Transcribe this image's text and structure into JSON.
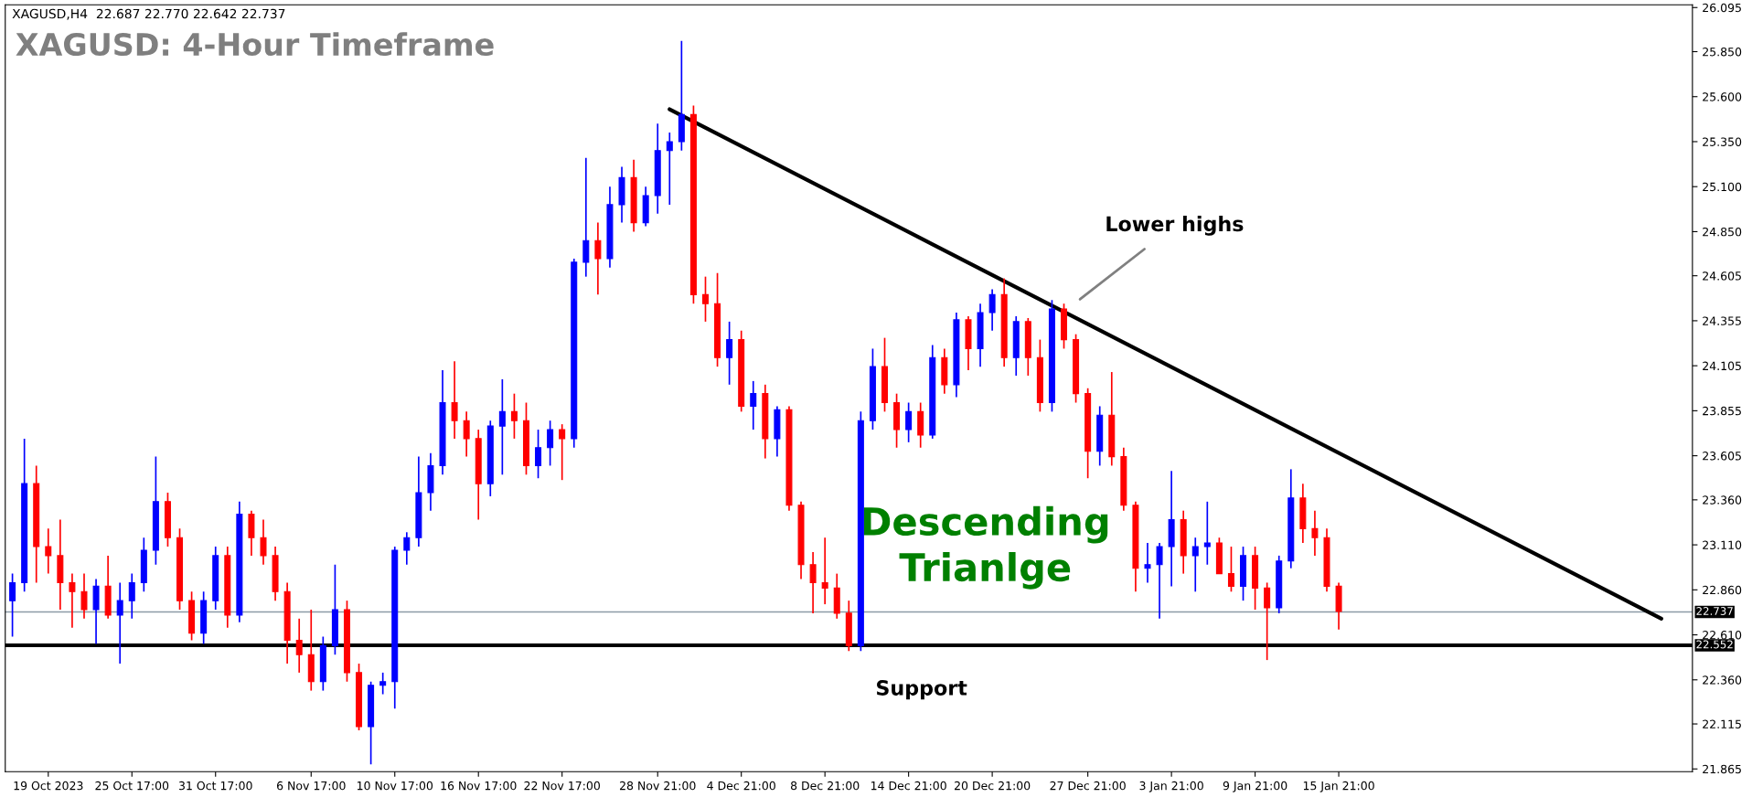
{
  "chart_data": {
    "type": "candlestick",
    "title": "XAGUSD: 4-Hour Timeframe",
    "annotations": [
      "XAGUSD,H4  22.687 22.770 22.642 22.737",
      "Lower highs",
      "Descending\nTrianlge",
      "Support"
    ],
    "categories": [
      null,
      null,
      null,
      "19 Oct 2023",
      null,
      null,
      null,
      null,
      null,
      null,
      "25 Oct 17:00",
      null,
      null,
      null,
      null,
      null,
      null,
      "31 Oct 17:00",
      null,
      null,
      null,
      null,
      null,
      null,
      null,
      "6 Nov 17:00",
      null,
      null,
      null,
      null,
      null,
      null,
      "10 Nov 17:00",
      null,
      null,
      null,
      null,
      null,
      null,
      "16 Nov 17:00",
      null,
      null,
      null,
      null,
      null,
      null,
      "22 Nov 17:00",
      null,
      null,
      null,
      null,
      null,
      null,
      null,
      "28 Nov 21:00",
      null,
      null,
      null,
      null,
      null,
      null,
      "4 Dec 21:00",
      null,
      null,
      null,
      null,
      null,
      null,
      "8 Dec 21:00",
      null,
      null,
      null,
      null,
      null,
      null,
      "14 Dec 21:00",
      null,
      null,
      null,
      null,
      null,
      null,
      "20 Dec 21:00",
      null,
      null,
      null,
      null,
      null,
      null,
      null,
      "27 Dec 21:00",
      null,
      null,
      null,
      null,
      null,
      null,
      "3 Jan 21:00",
      null,
      null,
      null,
      null,
      null,
      null,
      "9 Jan 21:00",
      null,
      null,
      null,
      null,
      null,
      null,
      "15 Jan 21:00",
      null,
      null,
      null,
      null,
      null,
      null,
      null,
      null,
      null,
      null,
      null,
      null,
      null,
      null,
      null,
      null,
      null,
      null,
      null,
      null,
      null,
      null,
      null,
      null,
      null,
      null,
      null,
      null,
      null
    ],
    "ohlc": [
      [
        22.8,
        22.95,
        22.6,
        22.9
      ],
      [
        22.9,
        23.7,
        22.85,
        23.45
      ],
      [
        23.45,
        23.55,
        22.9,
        23.1
      ],
      [
        23.1,
        23.2,
        22.95,
        23.05
      ],
      [
        23.05,
        23.25,
        22.75,
        22.9
      ],
      [
        22.9,
        22.95,
        22.65,
        22.85
      ],
      [
        22.85,
        22.95,
        22.7,
        22.75
      ],
      [
        22.75,
        22.92,
        22.56,
        22.88
      ],
      [
        22.88,
        23.05,
        22.7,
        22.72
      ],
      [
        22.72,
        22.9,
        22.45,
        22.8
      ],
      [
        22.8,
        22.95,
        22.7,
        22.9
      ],
      [
        22.9,
        23.15,
        22.85,
        23.08
      ],
      [
        23.08,
        23.6,
        23.0,
        23.35
      ],
      [
        23.35,
        23.4,
        23.1,
        23.15
      ],
      [
        23.15,
        23.2,
        22.75,
        22.8
      ],
      [
        22.8,
        22.85,
        22.58,
        22.62
      ],
      [
        22.62,
        22.85,
        22.56,
        22.8
      ],
      [
        22.8,
        23.1,
        22.75,
        23.05
      ],
      [
        23.05,
        23.1,
        22.65,
        22.72
      ],
      [
        22.72,
        23.35,
        22.68,
        23.28
      ],
      [
        23.28,
        23.3,
        23.05,
        23.15
      ],
      [
        23.15,
        23.25,
        23.0,
        23.05
      ],
      [
        23.05,
        23.1,
        22.8,
        22.85
      ],
      [
        22.85,
        22.9,
        22.45,
        22.58
      ],
      [
        22.58,
        22.7,
        22.4,
        22.5
      ],
      [
        22.5,
        22.75,
        22.3,
        22.35
      ],
      [
        22.35,
        22.6,
        22.3,
        22.55
      ],
      [
        22.55,
        23.0,
        22.5,
        22.75
      ],
      [
        22.75,
        22.8,
        22.35,
        22.4
      ],
      [
        22.4,
        22.45,
        22.08,
        22.1
      ],
      [
        22.1,
        22.35,
        21.89,
        22.33
      ],
      [
        22.33,
        22.4,
        22.28,
        22.35
      ],
      [
        22.35,
        23.1,
        22.2,
        23.08
      ],
      [
        23.08,
        23.18,
        23.0,
        23.15
      ],
      [
        23.15,
        23.6,
        23.1,
        23.4
      ],
      [
        23.4,
        23.62,
        23.3,
        23.55
      ],
      [
        23.55,
        24.08,
        23.5,
        23.9
      ],
      [
        23.9,
        24.13,
        23.7,
        23.8
      ],
      [
        23.8,
        23.85,
        23.6,
        23.7
      ],
      [
        23.7,
        23.75,
        23.25,
        23.45
      ],
      [
        23.45,
        23.8,
        23.38,
        23.77
      ],
      [
        23.77,
        24.03,
        23.5,
        23.85
      ],
      [
        23.85,
        23.95,
        23.7,
        23.8
      ],
      [
        23.8,
        23.9,
        23.5,
        23.55
      ],
      [
        23.55,
        23.75,
        23.48,
        23.65
      ],
      [
        23.65,
        23.8,
        23.55,
        23.75
      ],
      [
        23.75,
        23.78,
        23.47,
        23.7
      ],
      [
        23.7,
        24.7,
        23.65,
        24.68
      ],
      [
        24.68,
        25.26,
        24.6,
        24.8
      ],
      [
        24.8,
        24.9,
        24.5,
        24.7
      ],
      [
        24.7,
        25.1,
        24.65,
        25.0
      ],
      [
        25.0,
        25.21,
        24.9,
        25.15
      ],
      [
        25.15,
        25.25,
        24.85,
        24.9
      ],
      [
        24.9,
        25.1,
        24.88,
        25.05
      ],
      [
        25.05,
        25.45,
        24.95,
        25.3
      ],
      [
        25.3,
        25.4,
        25.0,
        25.35
      ],
      [
        25.35,
        25.91,
        25.3,
        25.5
      ],
      [
        25.5,
        25.55,
        24.45,
        24.5
      ],
      [
        24.5,
        24.6,
        24.35,
        24.45
      ],
      [
        24.45,
        24.62,
        24.1,
        24.15
      ],
      [
        24.15,
        24.35,
        24.0,
        24.25
      ],
      [
        24.25,
        24.3,
        23.85,
        23.88
      ],
      [
        23.88,
        24.02,
        23.75,
        23.95
      ],
      [
        23.95,
        24.0,
        23.59,
        23.7
      ],
      [
        23.7,
        23.88,
        23.6,
        23.86
      ],
      [
        23.86,
        23.88,
        23.3,
        23.33
      ],
      [
        23.33,
        23.35,
        22.92,
        23.0
      ],
      [
        23.0,
        23.07,
        22.73,
        22.9
      ],
      [
        22.9,
        23.15,
        22.78,
        22.87
      ],
      [
        22.87,
        22.95,
        22.7,
        22.73
      ],
      [
        22.73,
        22.8,
        22.52,
        22.55
      ],
      [
        22.55,
        23.85,
        22.52,
        23.8
      ],
      [
        23.8,
        24.2,
        23.75,
        24.1
      ],
      [
        24.1,
        24.26,
        23.85,
        23.9
      ],
      [
        23.9,
        23.95,
        23.65,
        23.75
      ],
      [
        23.75,
        23.9,
        23.68,
        23.85
      ],
      [
        23.85,
        23.9,
        23.65,
        23.72
      ],
      [
        23.72,
        24.22,
        23.7,
        24.15
      ],
      [
        24.15,
        24.2,
        23.95,
        24.0
      ],
      [
        24.0,
        24.4,
        23.93,
        24.36
      ],
      [
        24.36,
        24.38,
        24.08,
        24.2
      ],
      [
        24.2,
        24.45,
        24.1,
        24.4
      ],
      [
        24.4,
        24.53,
        24.3,
        24.5
      ],
      [
        24.5,
        24.59,
        24.1,
        24.15
      ],
      [
        24.15,
        24.38,
        24.05,
        24.35
      ],
      [
        24.35,
        24.37,
        24.05,
        24.15
      ],
      [
        24.15,
        24.25,
        23.85,
        23.9
      ],
      [
        23.9,
        24.47,
        23.85,
        24.42
      ],
      [
        24.42,
        24.45,
        24.2,
        24.25
      ],
      [
        24.25,
        24.28,
        23.9,
        23.95
      ],
      [
        23.95,
        23.98,
        23.48,
        23.63
      ],
      [
        23.63,
        23.88,
        23.55,
        23.83
      ],
      [
        23.83,
        24.07,
        23.55,
        23.6
      ],
      [
        23.6,
        23.65,
        23.3,
        23.33
      ],
      [
        23.33,
        23.35,
        22.85,
        22.98
      ],
      [
        22.98,
        23.12,
        22.9,
        23.0
      ],
      [
        23.0,
        23.12,
        22.7,
        23.1
      ],
      [
        23.1,
        23.52,
        22.88,
        23.25
      ],
      [
        23.25,
        23.3,
        22.95,
        23.05
      ],
      [
        23.05,
        23.15,
        22.85,
        23.1
      ],
      [
        23.1,
        23.35,
        23.0,
        23.12
      ],
      [
        23.12,
        23.15,
        22.95,
        22.95
      ],
      [
        22.95,
        23.1,
        22.85,
        22.88
      ],
      [
        22.88,
        23.1,
        22.8,
        23.05
      ],
      [
        23.05,
        23.1,
        22.75,
        22.87
      ],
      [
        22.87,
        22.9,
        22.47,
        22.76
      ],
      [
        22.76,
        23.05,
        22.73,
        23.02
      ],
      [
        23.02,
        23.53,
        22.98,
        23.37
      ],
      [
        23.37,
        23.45,
        23.12,
        23.2
      ],
      [
        23.2,
        23.3,
        23.05,
        23.15
      ],
      [
        23.15,
        23.2,
        22.85,
        22.88
      ],
      [
        22.88,
        22.9,
        22.64,
        22.74
      ],
      null,
      null,
      null,
      null,
      null,
      null,
      null,
      null,
      null,
      null,
      null,
      null,
      null,
      null,
      null,
      null,
      null,
      null,
      null,
      null,
      null,
      null,
      null,
      null,
      null,
      null,
      null,
      null,
      null
    ],
    "colors": [
      "#0000ff",
      "#0000ff",
      "#ff0000",
      "#ff0000",
      "#ff0000",
      "#ff0000",
      "#ff0000",
      "#0000ff",
      "#ff0000",
      "#0000ff",
      "#0000ff",
      "#0000ff",
      "#0000ff",
      "#ff0000",
      "#ff0000",
      "#ff0000",
      "#0000ff",
      "#0000ff",
      "#ff0000",
      "#0000ff",
      "#ff0000",
      "#ff0000",
      "#ff0000",
      "#ff0000",
      "#ff0000",
      "#ff0000",
      "#0000ff",
      "#0000ff",
      "#ff0000",
      "#ff0000",
      "#0000ff",
      "#0000ff",
      "#0000ff",
      "#0000ff",
      "#0000ff",
      "#0000ff",
      "#0000ff",
      "#ff0000",
      "#ff0000",
      "#ff0000",
      "#0000ff",
      "#0000ff",
      "#ff0000",
      "#ff0000",
      "#0000ff",
      "#0000ff",
      "#ff0000",
      "#0000ff",
      "#0000ff",
      "#ff0000",
      "#0000ff",
      "#0000ff",
      "#ff0000",
      "#0000ff",
      "#0000ff",
      "#0000ff",
      "#0000ff",
      "#ff0000",
      "#ff0000",
      "#ff0000",
      "#0000ff",
      "#ff0000",
      "#0000ff",
      "#ff0000",
      "#0000ff",
      "#ff0000",
      "#ff0000",
      "#ff0000",
      "#ff0000",
      "#ff0000",
      "#ff0000",
      "#0000ff",
      "#0000ff",
      "#ff0000",
      "#ff0000",
      "#0000ff",
      "#ff0000",
      "#0000ff",
      "#ff0000",
      "#0000ff",
      "#ff0000",
      "#0000ff",
      "#0000ff",
      "#ff0000",
      "#0000ff",
      "#ff0000",
      "#ff0000",
      "#0000ff",
      "#ff0000",
      "#ff0000",
      "#ff0000",
      "#0000ff",
      "#ff0000",
      "#ff0000",
      "#ff0000",
      "#0000ff",
      "#0000ff",
      "#0000ff",
      "#ff0000",
      "#0000ff",
      "#0000ff",
      "#ff0000",
      "#ff0000",
      "#0000ff",
      "#ff0000",
      "#ff0000",
      "#0000ff",
      "#0000ff",
      "#ff0000",
      "#ff0000",
      "#ff0000",
      "#ff0000",
      null,
      null,
      null,
      null,
      null,
      null,
      null,
      null,
      null,
      null,
      null,
      null,
      null,
      null,
      null,
      null,
      null,
      null,
      null,
      null,
      null,
      null,
      null,
      null,
      null,
      null,
      null,
      null,
      null
    ],
    "series": [
      {
        "type": "line",
        "color": "#000000",
        "values": [
          null,
          null,
          null,
          null,
          null,
          null,
          null,
          null,
          null,
          null,
          null,
          null,
          null,
          null,
          null,
          null,
          null,
          null,
          null,
          null,
          null,
          null,
          null,
          null,
          null,
          null,
          null,
          null,
          null,
          null,
          null,
          null,
          null,
          null,
          null,
          null,
          null,
          null,
          null,
          null,
          null,
          null,
          null,
          null,
          null,
          null,
          null,
          null,
          null,
          null,
          null,
          null,
          null,
          null,
          null,
          25.53,
          null,
          null,
          null,
          null,
          null,
          null,
          null,
          null,
          null,
          null,
          null,
          null,
          null,
          null,
          null,
          null,
          null,
          null,
          null,
          null,
          null,
          null,
          null,
          null,
          null,
          null,
          null,
          null,
          null,
          null,
          null,
          null,
          null,
          null,
          null,
          null,
          null,
          null,
          null,
          null,
          null,
          null,
          null,
          null,
          null,
          null,
          null,
          null,
          null,
          null,
          null,
          null,
          null,
          null,
          null,
          null,
          null,
          null,
          null,
          null,
          null,
          null,
          null,
          null,
          null,
          null,
          null,
          null,
          null,
          null,
          null,
          null,
          null,
          null,
          null,
          null,
          null,
          null,
          null,
          null,
          null,
          null,
          22.7,
          null,
          null
        ]
      }
    ],
    "ref_lines": [
      {
        "axis": "y",
        "value": 22.552,
        "label": "22.552",
        "color": "#000000",
        "line_style": "solid"
      },
      {
        "axis": "y",
        "value": 22.737,
        "label": "22.737",
        "color": "#8c9aa6",
        "line_style": "solid"
      }
    ],
    "ylim": [
      21.85,
      26.11
    ],
    "yticks": [
      21.865,
      22.115,
      {
        "value": 22.36,
        "label": "22.360"
      },
      {
        "value": 22.61,
        "label": "22.610"
      },
      {
        "value": 22.86,
        "label": "22.860"
      },
      {
        "value": 23.11,
        "label": "23.110"
      },
      {
        "value": 23.36,
        "label": "23.360"
      },
      23.605,
      23.855,
      24.105,
      24.355,
      24.605,
      {
        "value": 24.85,
        "label": "24.850"
      },
      {
        "value": 25.1,
        "label": "25.100"
      },
      {
        "value": 25.35,
        "label": "25.350"
      },
      {
        "value": 25.6,
        "label": "25.600"
      },
      {
        "value": 25.85,
        "label": "25.850"
      },
      26.095
    ]
  }
}
